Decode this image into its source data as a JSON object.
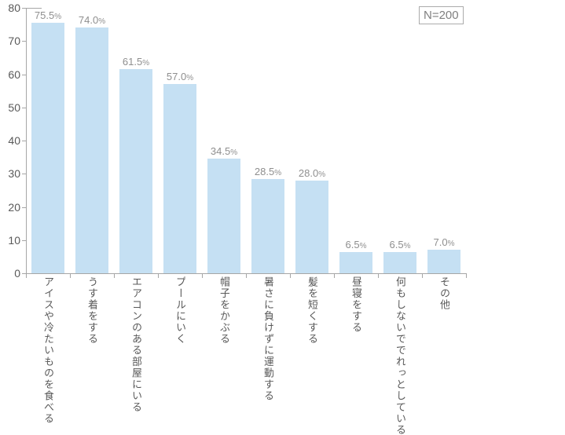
{
  "chart_data": {
    "type": "bar",
    "title": "",
    "xlabel": "",
    "ylabel": "",
    "categories": [
      "アイスや冷たいものを食べる",
      "うす着をする",
      "エアコンのある部屋にいる",
      "プールにいく",
      "帽子をかぶる",
      "暑さに負けずに運動する",
      "髪を短くする",
      "昼寝をする",
      "何もしないででれっとしている",
      "その他"
    ],
    "values": [
      75.5,
      74.0,
      61.5,
      57.0,
      34.5,
      28.5,
      28.0,
      6.5,
      6.5,
      7.0
    ],
    "value_suffix": "%",
    "ylim": [
      0,
      80
    ],
    "yticks": [
      0,
      10,
      20,
      30,
      40,
      50,
      60,
      70,
      80
    ],
    "grid": false,
    "legend_position": "none",
    "annotation": "N=200"
  },
  "badge": {
    "label": "N=200"
  },
  "colors": {
    "bar": "#c5e0f3",
    "axis": "#a6a6a6",
    "y_tick_label": "#595959",
    "value_label": "#8f8f8f",
    "category_label": "#595959",
    "badge_border": "#ababab",
    "badge_text": "#7f7f7f",
    "background": "#ffffff"
  }
}
